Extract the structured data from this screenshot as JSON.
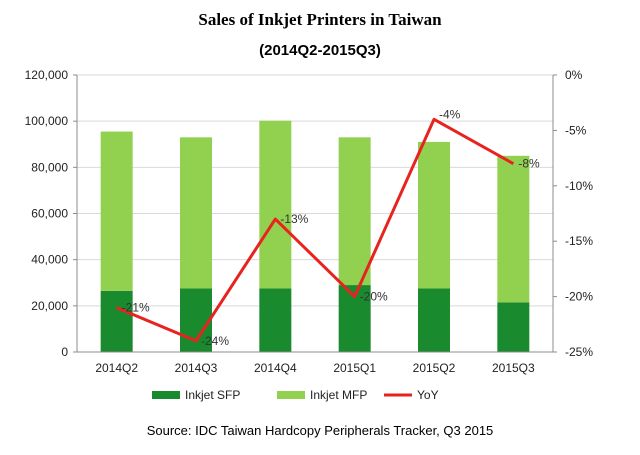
{
  "chart_data": {
    "type": "bar",
    "title": "Sales of Inkjet Printers in Taiwan",
    "subtitle": "(2014Q2-2015Q3)",
    "categories": [
      "2014Q2",
      "2014Q3",
      "2014Q4",
      "2015Q1",
      "2015Q2",
      "2015Q3"
    ],
    "stacked": true,
    "series": [
      {
        "name": "Inkjet SFP",
        "type": "bar",
        "axis": "left",
        "color": "#1a8a2e",
        "values": [
          26500,
          27500,
          27500,
          29000,
          27500,
          21500
        ]
      },
      {
        "name": "Inkjet MFP",
        "type": "bar",
        "axis": "left",
        "color": "#92d050",
        "values": [
          69000,
          65500,
          72700,
          64000,
          63500,
          63500
        ]
      },
      {
        "name": "YoY",
        "type": "line",
        "axis": "right",
        "color": "#e8231f",
        "values": [
          -21,
          -24,
          -13,
          -20,
          -4,
          -8
        ],
        "labels": [
          "-21%",
          "-24%",
          "-13%",
          "-20%",
          "-4%",
          "-8%"
        ]
      }
    ],
    "y_left": {
      "min": 0,
      "max": 120000,
      "ticks": [
        "0",
        "20,000",
        "40,000",
        "60,000",
        "80,000",
        "100,000",
        "120,000"
      ],
      "tick_values": [
        0,
        20000,
        40000,
        60000,
        80000,
        100000,
        120000
      ]
    },
    "y_right": {
      "min": -25,
      "max": 0,
      "ticks": [
        "-25%",
        "-20%",
        "-15%",
        "-10%",
        "-5%",
        "0%"
      ],
      "tick_values": [
        -25,
        -20,
        -15,
        -10,
        -5,
        0
      ]
    },
    "grid": true,
    "legend_position": "bottom"
  },
  "source": "Source:  IDC Taiwan Hardcopy Peripherals Tracker, Q3 2015"
}
